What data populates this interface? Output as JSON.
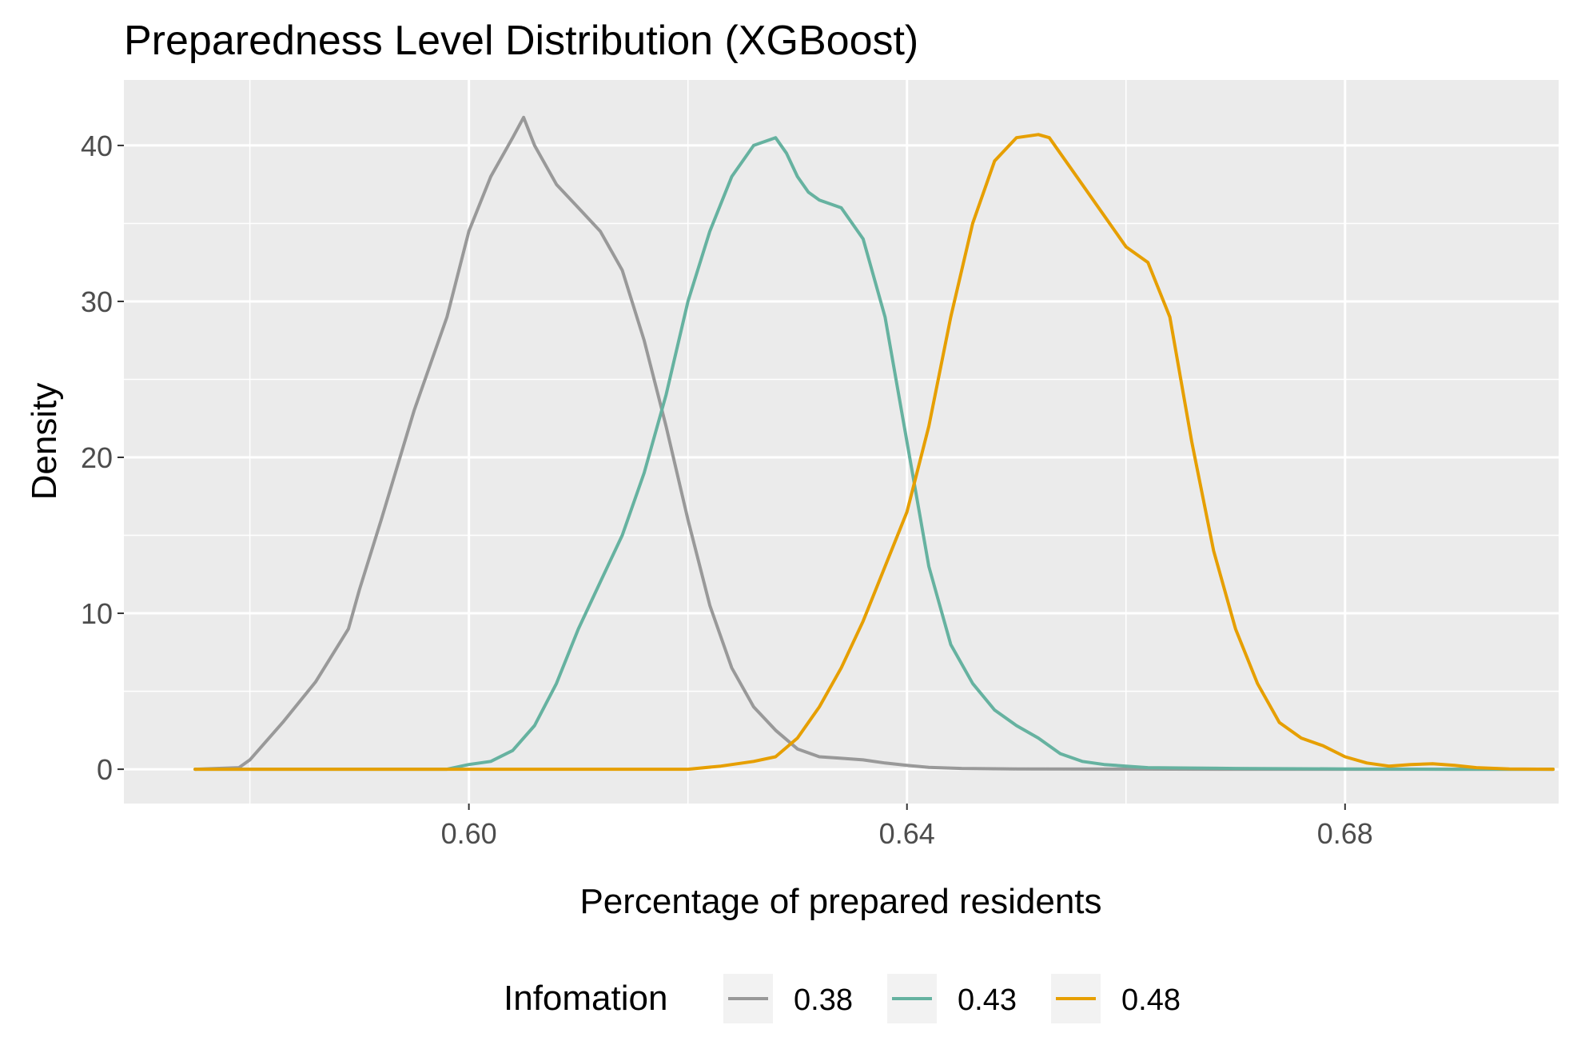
{
  "chart_data": {
    "type": "line",
    "title": "Preparedness Level Distribution (XGBoost)",
    "xlabel": "Percentage of prepared residents",
    "ylabel": "Density",
    "xlim": [
      0.5685,
      0.6995
    ],
    "ylim": [
      -2.2,
      44.2
    ],
    "x_ticks": [
      0.6,
      0.64,
      0.68
    ],
    "x_tick_labels": [
      "0.60",
      "0.64",
      "0.68"
    ],
    "y_ticks": [
      0,
      10,
      20,
      30,
      40
    ],
    "y_tick_labels": [
      "0",
      "10",
      "20",
      "30",
      "40"
    ],
    "grid": true,
    "panel_background": "#ebebeb",
    "legend": {
      "title": "Infomation",
      "position": "bottom",
      "entries": [
        "0.38",
        "0.43",
        "0.48"
      ]
    },
    "series": [
      {
        "name": "0.38",
        "color": "#999999",
        "x": [
          0.575,
          0.579,
          0.58,
          0.583,
          0.586,
          0.589,
          0.59,
          0.592,
          0.595,
          0.598,
          0.6,
          0.602,
          0.604,
          0.605,
          0.606,
          0.608,
          0.61,
          0.612,
          0.614,
          0.616,
          0.618,
          0.62,
          0.622,
          0.624,
          0.626,
          0.628,
          0.63,
          0.632,
          0.634,
          0.636,
          0.638,
          0.64,
          0.642,
          0.645,
          0.65,
          0.66,
          0.67,
          0.68,
          0.69,
          0.699
        ],
        "values": [
          0.0,
          0.1,
          0.6,
          3.0,
          5.6,
          9.0,
          11.5,
          16.0,
          23.0,
          29.0,
          34.5,
          38.0,
          40.5,
          41.8,
          40.0,
          37.5,
          36.0,
          34.5,
          32.0,
          27.5,
          22.0,
          16.0,
          10.5,
          6.5,
          4.0,
          2.5,
          1.3,
          0.8,
          0.7,
          0.6,
          0.4,
          0.25,
          0.12,
          0.05,
          0.02,
          0.01,
          0.0,
          0.0,
          0.0,
          0.0
        ]
      },
      {
        "name": "0.43",
        "color": "#66b2a0",
        "x": [
          0.575,
          0.598,
          0.6,
          0.602,
          0.604,
          0.606,
          0.608,
          0.61,
          0.612,
          0.614,
          0.616,
          0.618,
          0.62,
          0.622,
          0.624,
          0.626,
          0.628,
          0.629,
          0.63,
          0.631,
          0.632,
          0.634,
          0.636,
          0.638,
          0.64,
          0.642,
          0.644,
          0.646,
          0.648,
          0.65,
          0.652,
          0.654,
          0.656,
          0.658,
          0.66,
          0.662,
          0.665,
          0.67,
          0.68,
          0.69,
          0.699
        ],
        "values": [
          0.0,
          0.0,
          0.3,
          0.5,
          1.2,
          2.8,
          5.5,
          9.0,
          12.0,
          15.0,
          19.0,
          24.0,
          30.0,
          34.5,
          38.0,
          40.0,
          40.5,
          39.5,
          38.0,
          37.0,
          36.5,
          36.0,
          34.0,
          29.0,
          21.0,
          13.0,
          8.0,
          5.5,
          3.8,
          2.8,
          2.0,
          1.0,
          0.5,
          0.3,
          0.2,
          0.1,
          0.08,
          0.05,
          0.02,
          0.0,
          0.0
        ]
      },
      {
        "name": "0.48",
        "color": "#e69f00",
        "x": [
          0.575,
          0.6,
          0.62,
          0.623,
          0.626,
          0.628,
          0.63,
          0.632,
          0.634,
          0.636,
          0.638,
          0.64,
          0.642,
          0.644,
          0.646,
          0.648,
          0.65,
          0.652,
          0.653,
          0.654,
          0.656,
          0.658,
          0.66,
          0.662,
          0.664,
          0.666,
          0.668,
          0.67,
          0.672,
          0.674,
          0.676,
          0.678,
          0.68,
          0.682,
          0.684,
          0.686,
          0.688,
          0.69,
          0.692,
          0.695,
          0.699
        ],
        "values": [
          0.0,
          0.0,
          0.0,
          0.2,
          0.5,
          0.8,
          2.0,
          4.0,
          6.5,
          9.5,
          13.0,
          16.5,
          22.0,
          29.0,
          35.0,
          39.0,
          40.5,
          40.7,
          40.5,
          39.5,
          37.5,
          35.5,
          33.5,
          32.5,
          29.0,
          21.0,
          14.0,
          9.0,
          5.5,
          3.0,
          2.0,
          1.5,
          0.8,
          0.4,
          0.2,
          0.3,
          0.35,
          0.25,
          0.1,
          0.02,
          0.0
        ]
      }
    ]
  }
}
